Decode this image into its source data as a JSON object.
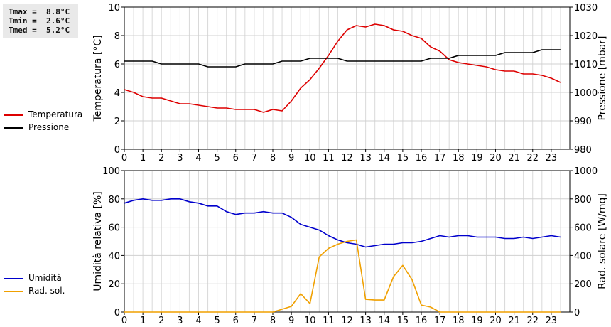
{
  "stats": {
    "tmax": "Tmax =  8.8°C",
    "tmin": "Tmin =  2.6°C",
    "tmed": "Tmed =  5.2°C"
  },
  "legend_top": [
    {
      "label": "Temperatura",
      "color": "#dd0000"
    },
    {
      "label": "Pressione",
      "color": "#000000"
    }
  ],
  "legend_bottom": [
    {
      "label": "Umidità",
      "color": "#0000cc"
    },
    {
      "label": "Rad. sol.",
      "color": "#f0a000"
    }
  ],
  "chart_data": [
    {
      "type": "line",
      "xlim": [
        0,
        24
      ],
      "x_ticks": [
        "0",
        "1",
        "2",
        "3",
        "4",
        "5",
        "6",
        "7",
        "8",
        "9",
        "10",
        "11",
        "12",
        "13",
        "14",
        "15",
        "16",
        "17",
        "18",
        "19",
        "20",
        "21",
        "22",
        "23"
      ],
      "ylabel": "Temperatura [°C]",
      "ylim": [
        0,
        10
      ],
      "y_ticks": [
        "0",
        "2",
        "4",
        "6",
        "8",
        "10"
      ],
      "y2label": "Pressione [mbar]",
      "y2lim": [
        980,
        1030
      ],
      "y2_ticks": [
        "980",
        "990",
        "1000",
        "1010",
        "1020",
        "1030"
      ],
      "grid": true,
      "series": [
        {
          "name": "Temperatura",
          "color": "#dd0000",
          "axis": "left",
          "x": [
            0,
            0.5,
            1,
            1.5,
            2,
            2.5,
            3,
            3.5,
            4,
            4.5,
            5,
            5.5,
            6,
            6.5,
            7,
            7.5,
            8,
            8.5,
            9,
            9.5,
            10,
            10.5,
            11,
            11.5,
            12,
            12.5,
            13,
            13.5,
            14,
            14.5,
            15,
            15.5,
            16,
            16.5,
            17,
            17.5,
            18,
            18.5,
            19,
            19.5,
            20,
            20.5,
            21,
            21.5,
            22,
            22.5,
            23,
            23.5
          ],
          "values": [
            4.2,
            4.0,
            3.7,
            3.6,
            3.6,
            3.4,
            3.2,
            3.2,
            3.1,
            3.0,
            2.9,
            2.9,
            2.8,
            2.8,
            2.8,
            2.6,
            2.8,
            2.7,
            3.4,
            4.3,
            4.9,
            5.7,
            6.6,
            7.6,
            8.4,
            8.7,
            8.6,
            8.8,
            8.7,
            8.4,
            8.3,
            8.0,
            7.8,
            7.2,
            6.9,
            6.3,
            6.1,
            6.0,
            5.9,
            5.8,
            5.6,
            5.5,
            5.5,
            5.3,
            5.3,
            5.2,
            5.0,
            4.7
          ]
        },
        {
          "name": "Pressione",
          "color": "#000000",
          "axis": "right",
          "x": [
            0,
            0.5,
            1,
            1.5,
            2,
            2.5,
            3,
            3.5,
            4,
            4.5,
            5,
            5.5,
            6,
            6.5,
            7,
            7.5,
            8,
            8.5,
            9,
            9.5,
            10,
            10.5,
            11,
            11.5,
            12,
            12.5,
            13,
            13.5,
            14,
            14.5,
            15,
            15.5,
            16,
            16.5,
            17,
            17.5,
            18,
            18.5,
            19,
            19.5,
            20,
            20.5,
            21,
            21.5,
            22,
            22.5,
            23,
            23.5
          ],
          "values": [
            1011,
            1011,
            1011,
            1011,
            1010,
            1010,
            1010,
            1010,
            1010,
            1009,
            1009,
            1009,
            1009,
            1010,
            1010,
            1010,
            1010,
            1011,
            1011,
            1011,
            1012,
            1012,
            1012,
            1012,
            1011,
            1011,
            1011,
            1011,
            1011,
            1011,
            1011,
            1011,
            1011,
            1012,
            1012,
            1012,
            1013,
            1013,
            1013,
            1013,
            1013,
            1014,
            1014,
            1014,
            1014,
            1015,
            1015,
            1015
          ]
        }
      ]
    },
    {
      "type": "line",
      "xlim": [
        0,
        24
      ],
      "x_ticks": [
        "0",
        "1",
        "2",
        "3",
        "4",
        "5",
        "6",
        "7",
        "8",
        "9",
        "10",
        "11",
        "12",
        "13",
        "14",
        "15",
        "16",
        "17",
        "18",
        "19",
        "20",
        "21",
        "22",
        "23"
      ],
      "ylabel": "Umidità relativa [%]",
      "ylim": [
        0,
        100
      ],
      "y_ticks": [
        "0",
        "20",
        "40",
        "60",
        "80",
        "100"
      ],
      "y2label": "Rad. solare [W/mq]",
      "y2lim": [
        0,
        1000
      ],
      "y2_ticks": [
        "0",
        "200",
        "400",
        "600",
        "800",
        "1000"
      ],
      "grid": true,
      "series": [
        {
          "name": "Umidità",
          "color": "#0000cc",
          "axis": "left",
          "x": [
            0,
            0.5,
            1,
            1.5,
            2,
            2.5,
            3,
            3.5,
            4,
            4.5,
            5,
            5.5,
            6,
            6.5,
            7,
            7.5,
            8,
            8.5,
            9,
            9.5,
            10,
            10.5,
            11,
            11.5,
            12,
            12.5,
            13,
            13.5,
            14,
            14.5,
            15,
            15.5,
            16,
            16.5,
            17,
            17.5,
            18,
            18.5,
            19,
            19.5,
            20,
            20.5,
            21,
            21.5,
            22,
            22.5,
            23,
            23.5
          ],
          "values": [
            77,
            79,
            80,
            79,
            79,
            80,
            80,
            78,
            77,
            75,
            75,
            71,
            69,
            70,
            70,
            71,
            70,
            70,
            67,
            62,
            60,
            58,
            54,
            51,
            49,
            48,
            46,
            47,
            48,
            48,
            49,
            49,
            50,
            52,
            54,
            53,
            54,
            54,
            53,
            53,
            53,
            52,
            52,
            53,
            52,
            53,
            54,
            53
          ]
        },
        {
          "name": "Rad. sol.",
          "color": "#f0a000",
          "axis": "right",
          "x": [
            0,
            0.5,
            1,
            1.5,
            2,
            2.5,
            3,
            3.5,
            4,
            4.5,
            5,
            5.5,
            6,
            6.5,
            7,
            7.5,
            8,
            8.5,
            9,
            9.5,
            10,
            10.5,
            11,
            11.5,
            12,
            12.5,
            13,
            13.5,
            14,
            14.5,
            15,
            15.5,
            16,
            16.5,
            17,
            17.5,
            18,
            18.5,
            19,
            19.5,
            20,
            20.5,
            21,
            21.5,
            22,
            22.5,
            23,
            23.5
          ],
          "values": [
            0,
            0,
            0,
            0,
            0,
            0,
            0,
            0,
            0,
            0,
            0,
            0,
            0,
            0,
            0,
            0,
            0,
            20,
            40,
            130,
            60,
            390,
            450,
            480,
            500,
            510,
            90,
            85,
            85,
            250,
            330,
            230,
            50,
            35,
            0,
            0,
            0,
            0,
            0,
            0,
            0,
            0,
            0,
            0,
            0,
            0,
            0,
            0
          ]
        }
      ]
    }
  ]
}
